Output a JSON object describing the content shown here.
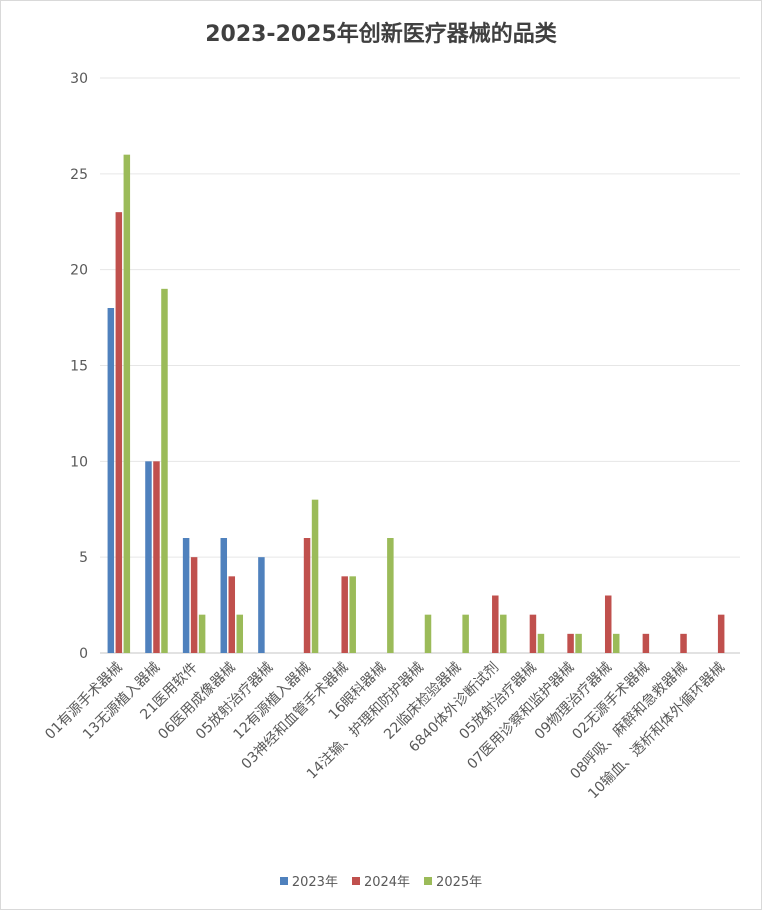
{
  "chart_data": {
    "type": "bar",
    "title": "2023-2025年创新医疗器械的品类",
    "categories": [
      "01有源手术器械",
      "13无源植入器械",
      "21医用软件",
      "06医用成像器械",
      "05放射治疗器械",
      "12有源植入器械",
      "03神经和血管手术器械",
      "16眼科器械",
      "14注输、护理和防护器械",
      "22临床检验器械",
      "6840体外诊断试剂",
      "05放射治疗器械",
      "07医用诊察和监护器械",
      "09物理治疗器械",
      "02无源手术器械",
      "08呼吸、麻醉和急救器械",
      "10输血、透析和体外循环器械"
    ],
    "series": [
      {
        "name": "2023年",
        "color": "#4f81bd",
        "values": [
          18,
          10,
          6,
          6,
          5,
          0,
          0,
          0,
          0,
          0,
          0,
          0,
          0,
          0,
          0,
          0,
          0
        ]
      },
      {
        "name": "2024年",
        "color": "#c0504d",
        "values": [
          23,
          10,
          5,
          4,
          0,
          6,
          4,
          0,
          0,
          0,
          3,
          2,
          1,
          3,
          1,
          1,
          2
        ]
      },
      {
        "name": "2025年",
        "color": "#9bbb59",
        "values": [
          26,
          19,
          2,
          2,
          0,
          8,
          4,
          6,
          2,
          2,
          2,
          1,
          1,
          1,
          0,
          0,
          0
        ]
      }
    ],
    "ylim": [
      0,
      30
    ],
    "yticks": [
      0,
      5,
      10,
      15,
      20,
      25,
      30
    ],
    "grid": true,
    "legend": "bottom"
  }
}
